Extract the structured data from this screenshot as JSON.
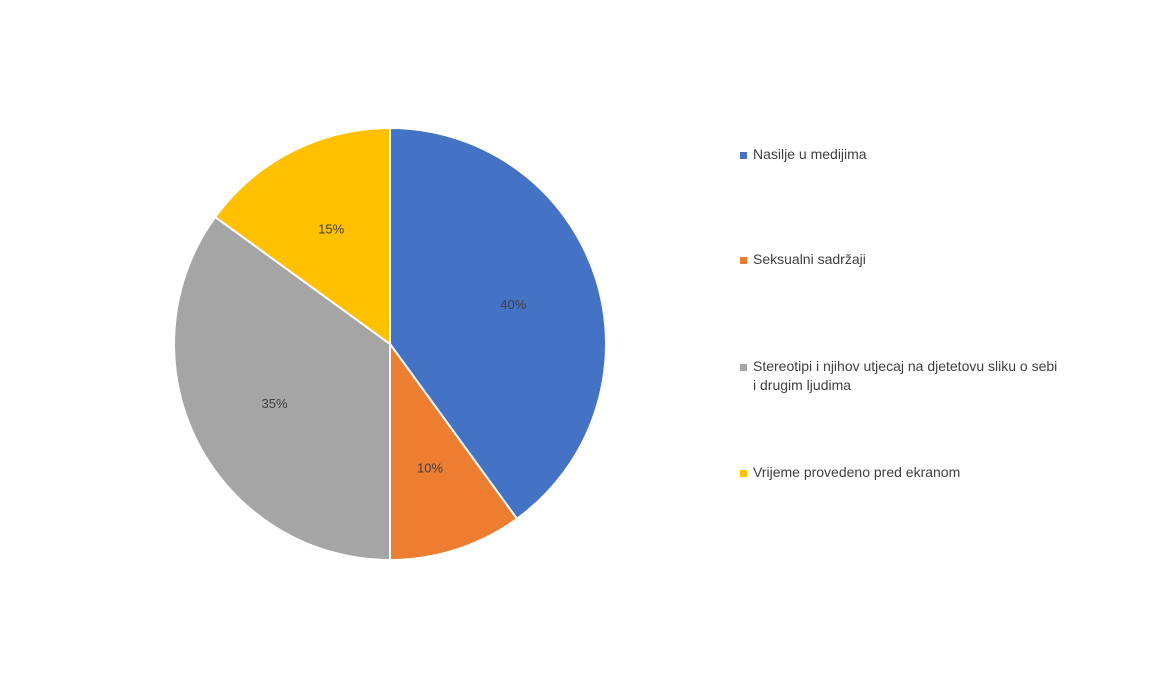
{
  "chart_data": {
    "type": "pie",
    "title": "",
    "start_angle_deg": 0,
    "direction": "clockwise",
    "legend_position": "right",
    "slices": [
      {
        "label": "Nasilje u medijima",
        "value": 40,
        "display": "40%",
        "color": "#4472C4"
      },
      {
        "label": "Seksualni sadržaji",
        "value": 10,
        "display": "10%",
        "color": "#ED7D31"
      },
      {
        "label": "Stereotipi i njihov utjecaj na djetetovu sliku o sebi i drugim ljudima",
        "value": 35,
        "display": "35%",
        "color": "#A5A5A5"
      },
      {
        "label": "Vrijeme provedeno pred ekranom",
        "value": 15,
        "display": "15%",
        "color": "#FFC000"
      }
    ]
  }
}
